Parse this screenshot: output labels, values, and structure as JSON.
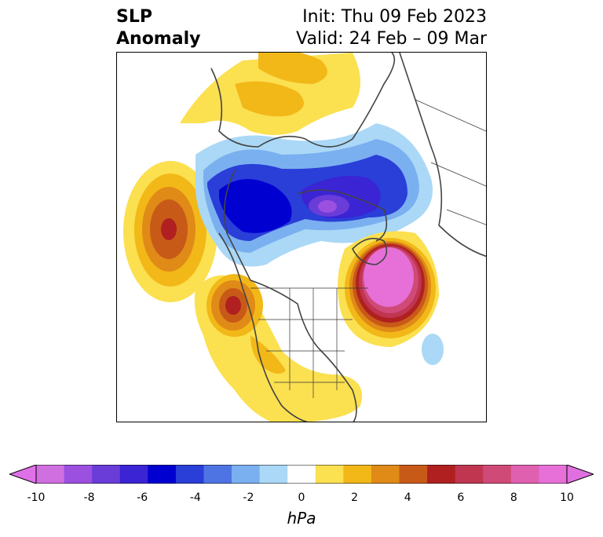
{
  "title": {
    "left_line1": "SLP",
    "left_line2": "Anomaly",
    "right_line1": "Init: Thu 09 Feb 2023",
    "right_line2": "Valid: 24 Feb – 09 Mar"
  },
  "colorbar": {
    "units": "hPa",
    "ticks": [
      "-10",
      "-8",
      "-6",
      "-4",
      "-2",
      "0",
      "2",
      "4",
      "6",
      "8",
      "10"
    ],
    "colors": [
      "#d070e0",
      "#9c50e0",
      "#6a3cd8",
      "#3a24d4",
      "#0000d0",
      "#2a3ed8",
      "#4e74e4",
      "#7ab0f0",
      "#aad8f6",
      "#ffffff",
      "#fbe050",
      "#f2b818",
      "#e08a18",
      "#c85a18",
      "#b02020",
      "#c03550",
      "#d04a78",
      "#e060b0",
      "#e670d8"
    ],
    "extend_low_color": "#e070e8",
    "extend_high_color": "#e070e0"
  }
}
